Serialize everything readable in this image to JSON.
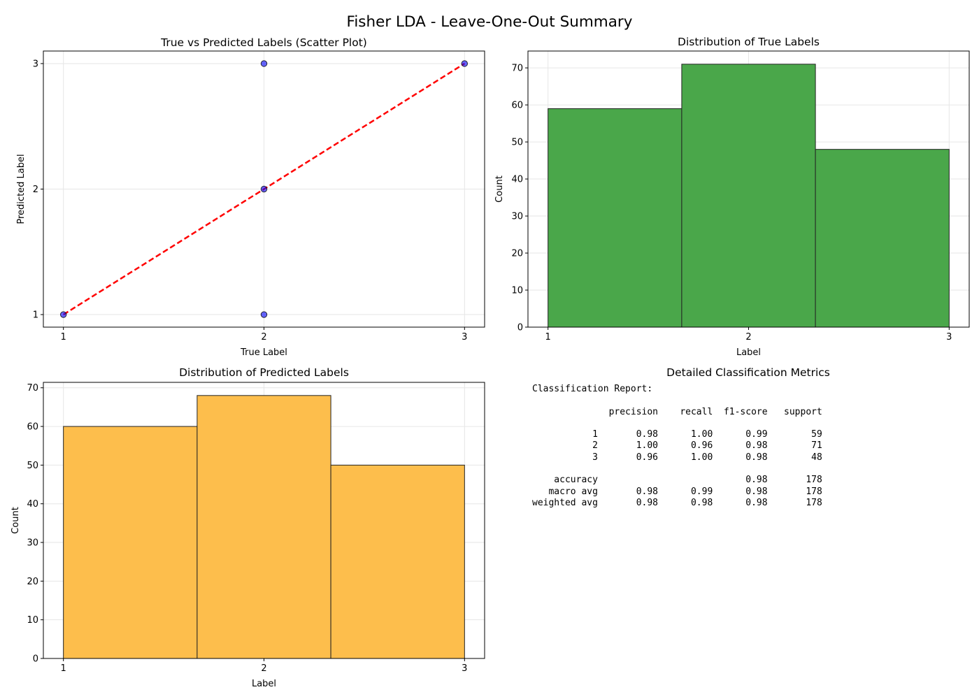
{
  "figure_title": "Fisher LDA - Leave-One-Out Summary",
  "colors": {
    "scatter_point": "#0000ff",
    "diagonal_line": "#ff0000",
    "true_hist": "#4aa74a",
    "pred_hist": "#fdbe4c",
    "bar_edge": "#222222",
    "grid": "#e6e6e6"
  },
  "chart_data": [
    {
      "type": "scatter",
      "title": "True vs Predicted Labels (Scatter Plot)",
      "xlabel": "True Label",
      "ylabel": "Predicted Label",
      "xlim": [
        0.9,
        3.1
      ],
      "ylim": [
        0.9,
        3.1
      ],
      "x_ticks": [
        1,
        2,
        3
      ],
      "y_ticks": [
        1,
        2,
        3
      ],
      "grid": true,
      "points": [
        {
          "x": 1,
          "y": 1
        },
        {
          "x": 2,
          "y": 2
        },
        {
          "x": 2,
          "y": 3
        },
        {
          "x": 2,
          "y": 1
        },
        {
          "x": 3,
          "y": 3
        }
      ],
      "reference_line": {
        "x": [
          1,
          3
        ],
        "y": [
          1,
          3
        ],
        "style": "dashed"
      }
    },
    {
      "type": "bar",
      "title": "Distribution of True Labels",
      "xlabel": "Label",
      "ylabel": "Count",
      "bin_edges": [
        1,
        1.6667,
        2.3333,
        3
      ],
      "values": [
        59,
        71,
        48
      ],
      "xlim": [
        0.9,
        3.1
      ],
      "ylim": [
        0,
        74.55
      ],
      "x_ticks": [
        1,
        2,
        3
      ],
      "y_ticks": [
        0,
        10,
        20,
        30,
        40,
        50,
        60,
        70
      ],
      "grid": true
    },
    {
      "type": "bar",
      "title": "Distribution of Predicted Labels",
      "xlabel": "Label",
      "ylabel": "Count",
      "bin_edges": [
        1,
        1.6667,
        2.3333,
        3
      ],
      "values": [
        60,
        68,
        50
      ],
      "xlim": [
        0.9,
        3.1
      ],
      "ylim": [
        0,
        71.4
      ],
      "x_ticks": [
        1,
        2,
        3
      ],
      "y_ticks": [
        0,
        10,
        20,
        30,
        40,
        50,
        60,
        70
      ],
      "grid": true
    }
  ],
  "metrics_panel": {
    "title": "Detailed Classification Metrics",
    "report_text": "Classification Report:\n\n              precision    recall  f1-score   support\n\n           1       0.98      1.00      0.99        59\n           2       1.00      0.96      0.98        71\n           3       0.96      1.00      0.98        48\n\n    accuracy                           0.98       178\n   macro avg       0.98      0.99      0.98       178\nweighted avg       0.98      0.98      0.98       178"
  }
}
